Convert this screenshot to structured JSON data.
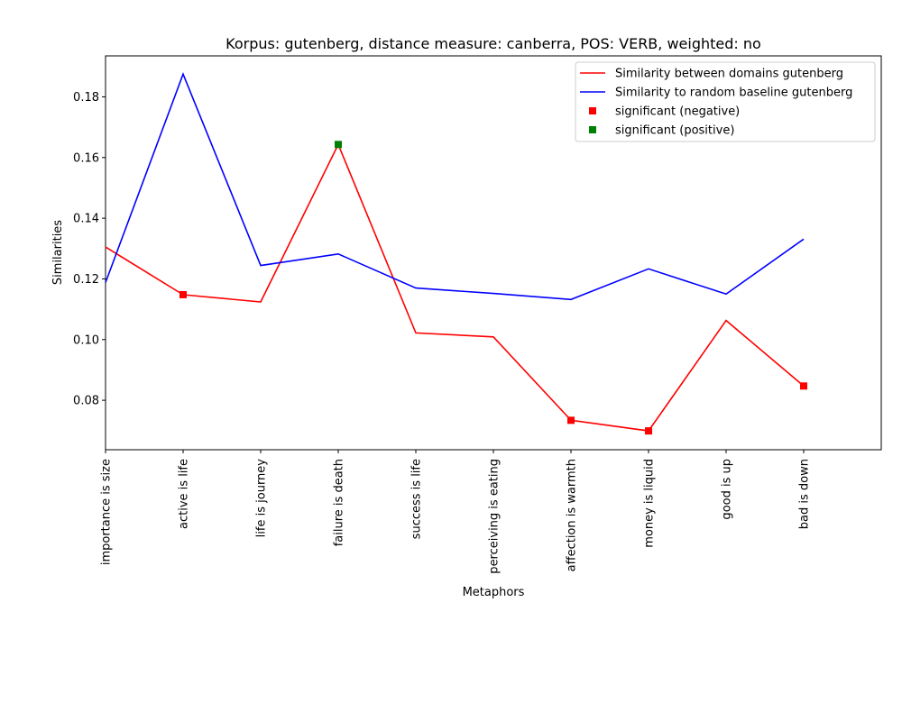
{
  "chart_data": {
    "type": "line",
    "title": "Korpus: gutenberg, distance measure: canberra, POS: VERB, weighted: no",
    "xlabel": "Metaphors",
    "ylabel": "Similarities",
    "categories": [
      "importance is size",
      "active is life",
      "life is journey",
      "failure is death",
      "success is life",
      "perceiving is eating",
      "affection is warmth",
      "money is liquid",
      "good is up",
      "bad is down"
    ],
    "xlim": [
      0,
      10
    ],
    "ylim": [
      0.0637,
      0.1935
    ],
    "yticks": [
      0.08,
      0.1,
      0.12,
      0.14,
      0.16,
      0.18
    ],
    "ytick_labels": [
      "0.08",
      "0.10",
      "0.12",
      "0.14",
      "0.16",
      "0.18"
    ],
    "series": [
      {
        "name": "Similarity between domains gutenberg",
        "color": "#ff0000",
        "values": [
          0.1305,
          0.1148,
          0.1124,
          0.1643,
          0.1022,
          0.1009,
          0.0734,
          0.0699,
          0.1063,
          0.0847
        ]
      },
      {
        "name": "Similarity to random baseline gutenberg",
        "color": "#0000ff",
        "values": [
          0.1188,
          0.1875,
          0.1244,
          0.1282,
          0.117,
          0.1152,
          0.1132,
          0.1233,
          0.115,
          0.1331
        ]
      }
    ],
    "markers": [
      {
        "name": "significant (negative)",
        "color": "#ff0000",
        "points": [
          [
            1,
            0.1148
          ],
          [
            6,
            0.0734
          ],
          [
            7,
            0.0699
          ],
          [
            9,
            0.0847
          ]
        ]
      },
      {
        "name": "significant (positive)",
        "color": "#008000",
        "points": [
          [
            3,
            0.1643
          ]
        ]
      }
    ],
    "legend": "top-right",
    "grid": false
  }
}
